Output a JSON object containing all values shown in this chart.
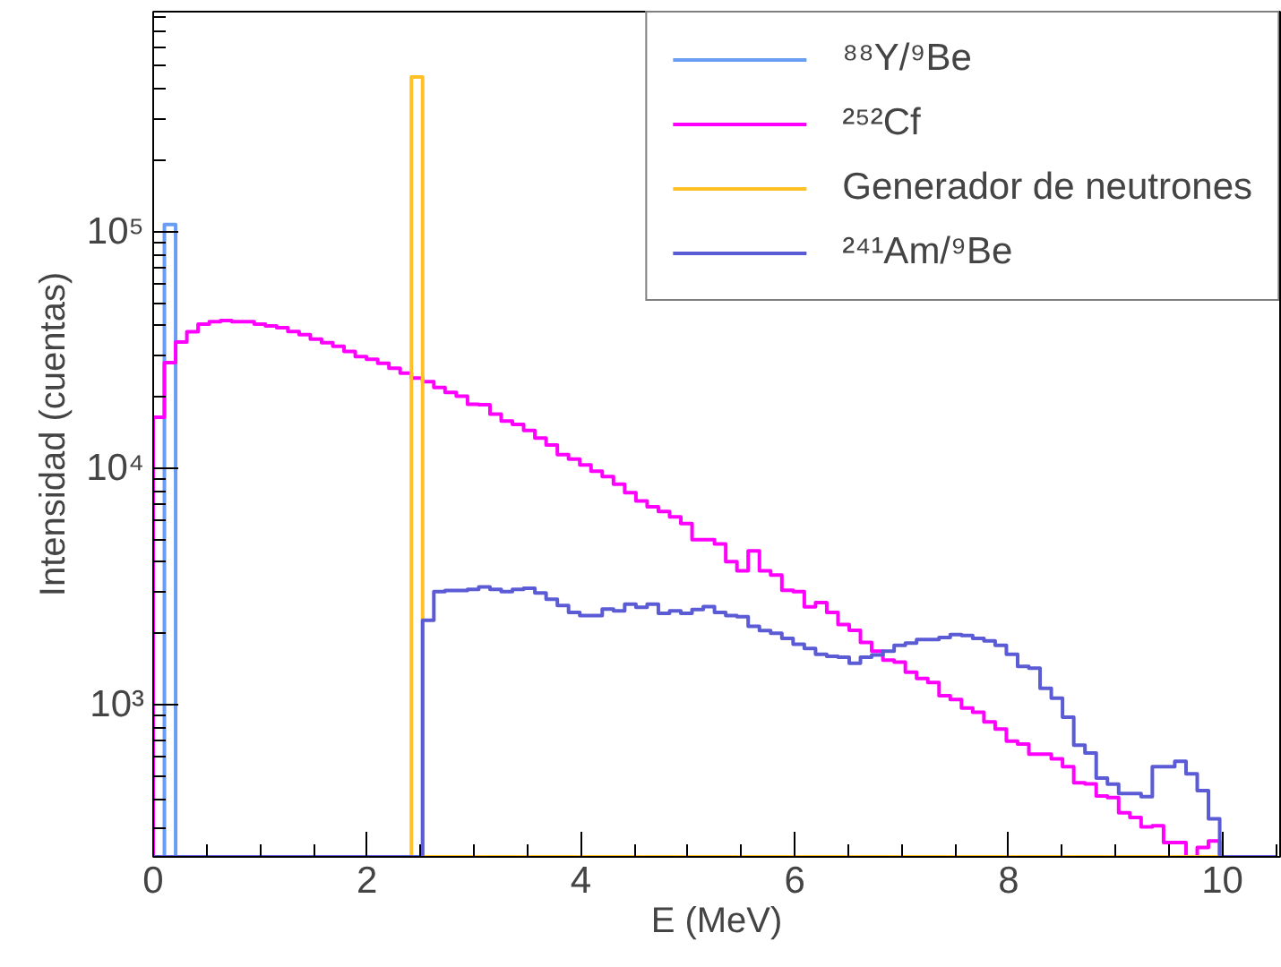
{
  "chart_data": {
    "type": "histogram",
    "xlabel": "E (MeV)",
    "ylabel": "Intensidad (cuentas)",
    "xlim": [
      0,
      10.54
    ],
    "ylim": [
      227,
      850000
    ],
    "log": true,
    "grid": false,
    "legend": "top right",
    "xticks": [
      0,
      2,
      4,
      6,
      8,
      10
    ],
    "yticks": [
      {
        "value": 1000,
        "label": "10³"
      },
      {
        "value": 10000,
        "label": "10⁴"
      },
      {
        "value": 100000,
        "label": "10⁵"
      }
    ],
    "bins": [
      0,
      0.105,
      0.21,
      0.315,
      0.42,
      0.525,
      0.63,
      0.735,
      0.84,
      0.945,
      1.05,
      1.155,
      1.26,
      1.365,
      1.47,
      1.575,
      1.68,
      1.785,
      1.89,
      1.995,
      2.1,
      2.205,
      2.31,
      2.415,
      2.52,
      2.625,
      2.73,
      2.835,
      2.94,
      3.045,
      3.15,
      3.255,
      3.36,
      3.465,
      3.57,
      3.675,
      3.78,
      3.885,
      3.99,
      4.095,
      4.2,
      4.305,
      4.41,
      4.515,
      4.62,
      4.725,
      4.83,
      4.935,
      5.04,
      5.145,
      5.25,
      5.355,
      5.46,
      5.565,
      5.67,
      5.775,
      5.88,
      5.985,
      6.09,
      6.195,
      6.3,
      6.405,
      6.51,
      6.615,
      6.72,
      6.825,
      6.93,
      7.035,
      7.14,
      7.245,
      7.35,
      7.455,
      7.56,
      7.665,
      7.77,
      7.875,
      7.98,
      8.085,
      8.19,
      8.295,
      8.4,
      8.505,
      8.61,
      8.715,
      8.82,
      8.925,
      9.03,
      9.135,
      9.24,
      9.345,
      9.45,
      9.555,
      9.66,
      9.765,
      9.87,
      9.975,
      10.08,
      10.185,
      10.29,
      10.395,
      10.5
    ],
    "series": [
      {
        "name": "⁸⁸Y/⁹Be",
        "color": "#6a9ef5",
        "values": [
          null,
          107000,
          null,
          null,
          null,
          null,
          null,
          null,
          null,
          null,
          null,
          null,
          null,
          null,
          null,
          null,
          null,
          null,
          null,
          null,
          null,
          null,
          null,
          null,
          null,
          null,
          null,
          null,
          null,
          null,
          null,
          null,
          null,
          null,
          null,
          null,
          null,
          null,
          null,
          null,
          null,
          null,
          null,
          null,
          null,
          null,
          null,
          null,
          null,
          null,
          null,
          null,
          null,
          null,
          null,
          null,
          null,
          null,
          null,
          null,
          null,
          null,
          null,
          null,
          null,
          null,
          null,
          null,
          null,
          null,
          null,
          null,
          null,
          null,
          null,
          null,
          null,
          null,
          null,
          null,
          null,
          null,
          null,
          null,
          null,
          null,
          null,
          null,
          null,
          null,
          null,
          null,
          null,
          null,
          null,
          null,
          null,
          null,
          null,
          null
        ]
      },
      {
        "name": "²⁵²Cf",
        "color": "#ff00ff",
        "values": [
          16400,
          27900,
          34100,
          37700,
          40600,
          41600,
          42000,
          41600,
          41600,
          40600,
          39900,
          39200,
          37800,
          36600,
          35100,
          33900,
          32700,
          31100,
          29600,
          28800,
          27700,
          26400,
          25200,
          24000,
          23200,
          21900,
          20900,
          20100,
          18600,
          18500,
          16900,
          15800,
          15300,
          14400,
          13400,
          12500,
          11400,
          10900,
          10300,
          9700,
          9200,
          8550,
          7870,
          7260,
          6850,
          6550,
          6210,
          5820,
          4980,
          4980,
          4780,
          4020,
          3680,
          4460,
          3680,
          3530,
          3040,
          3000,
          2590,
          2700,
          2450,
          2180,
          2060,
          1830,
          1680,
          1540,
          1510,
          1370,
          1290,
          1240,
          1090,
          1050,
          966,
          928,
          845,
          788,
          701,
          681,
          617,
          617,
          589,
          546,
          467,
          462,
          411,
          404,
          349,
          333,
          304,
          307,
          261,
          261,
          null,
          249,
          265,
          null,
          null,
          null,
          null,
          null
        ]
      },
      {
        "name": "Generador de neutrones",
        "color": "#ffc125",
        "values": [
          null,
          null,
          null,
          null,
          null,
          null,
          null,
          null,
          null,
          null,
          null,
          null,
          null,
          null,
          null,
          null,
          null,
          null,
          null,
          null,
          null,
          null,
          null,
          450000,
          null,
          null,
          null,
          null,
          null,
          null,
          null,
          null,
          null,
          null,
          null,
          null,
          null,
          null,
          null,
          null,
          null,
          null,
          null,
          null,
          null,
          null,
          null,
          null,
          null,
          null,
          null,
          null,
          null,
          null,
          null,
          null,
          null,
          null,
          null,
          null,
          null,
          null,
          null,
          null,
          null,
          null,
          null,
          null,
          null,
          null,
          null,
          null,
          null,
          null,
          null,
          null,
          null,
          null,
          null,
          null,
          null,
          null,
          null,
          null,
          null,
          null,
          null,
          null,
          null,
          null,
          null,
          null,
          null,
          null,
          null,
          null,
          null,
          null,
          null,
          null
        ]
      },
      {
        "name": "²⁴¹Am/⁹Be",
        "color": "#5b5bd6",
        "values": [
          null,
          null,
          null,
          null,
          null,
          null,
          null,
          null,
          null,
          null,
          null,
          null,
          null,
          null,
          null,
          null,
          null,
          null,
          null,
          null,
          null,
          null,
          null,
          null,
          2270,
          3000,
          3035,
          3035,
          3070,
          3140,
          3070,
          3000,
          3070,
          3105,
          2965,
          2785,
          2625,
          2450,
          2380,
          2380,
          2535,
          2490,
          2655,
          2575,
          2655,
          2430,
          2490,
          2430,
          2520,
          2595,
          2450,
          2380,
          2350,
          2140,
          2055,
          2000,
          1905,
          1800,
          1725,
          1630,
          1600,
          1585,
          1495,
          1585,
          1620,
          1680,
          1780,
          1820,
          1885,
          1885,
          1920,
          1975,
          1960,
          1905,
          1860,
          1780,
          1630,
          1450,
          1425,
          1170,
          1065,
          885,
          673,
          624,
          489,
          461,
          421,
          421,
          408,
          546,
          546,
          576,
          509,
          433,
          329,
          null,
          null,
          null,
          null,
          null
        ]
      }
    ]
  }
}
